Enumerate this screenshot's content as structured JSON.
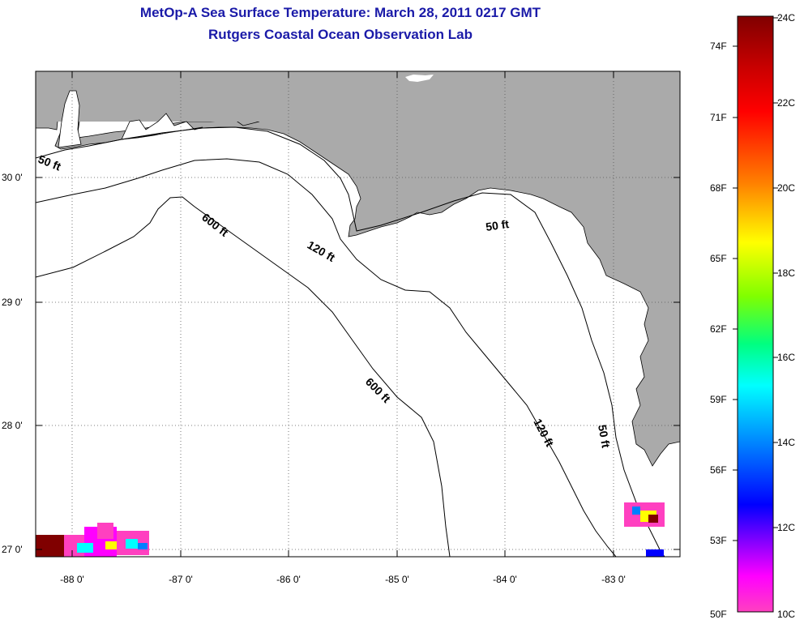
{
  "title": {
    "line1": "MetOp-A Sea Surface Temperature:  March 28, 2011 0217 GMT",
    "line2": "Rutgers Coastal Ocean Observation Lab"
  },
  "map": {
    "land_color": "#aaaaaa",
    "ocean_color": "#ffffff",
    "grid": "dotted",
    "lat_labels": [
      "30 0'",
      "29 0'",
      "28 0'",
      "27 0'"
    ],
    "lon_labels": [
      "-88 0'",
      "-87 0'",
      "-86 0'",
      "-85 0'",
      "-84 0'",
      "-83 0'"
    ],
    "contour_labels": {
      "c50_west": "50 ft",
      "c50_east": "50 ft",
      "c50_south": "50 ft",
      "c120_north": "120 ft",
      "c120_south": "120 ft",
      "c600_north": "600 ft",
      "c600_south": "600 ft"
    }
  },
  "colorbar": {
    "fahrenheit_labels": [
      "74F",
      "71F",
      "68F",
      "65F",
      "62F",
      "59F",
      "56F",
      "53F",
      "50F"
    ],
    "celsius_labels": [
      "24C",
      "22C",
      "20C",
      "18C",
      "16C",
      "14C",
      "12C",
      "10C"
    ],
    "colors": [
      "#800000",
      "#ff0000",
      "#ff8000",
      "#ffff00",
      "#80ff00",
      "#00ff80",
      "#00ffff",
      "#0080ff",
      "#0000ff",
      "#8000ff",
      "#ff00ff",
      "#ff40c0"
    ]
  }
}
